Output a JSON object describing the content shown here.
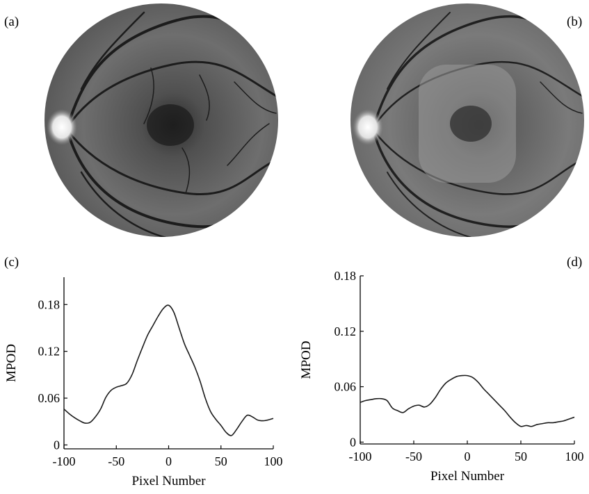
{
  "panels": {
    "a": "(a)",
    "b": "(b)",
    "c": "(c)",
    "d": "(d)"
  },
  "colors": {
    "line": "#1a1a1a",
    "axis": "#000000"
  },
  "chart_data": [
    {
      "type": "line",
      "panel": "(c)",
      "xlabel": "Pixel Number",
      "ylabel": "MPOD",
      "xlim": [
        -100,
        100
      ],
      "ylim": [
        -0.005,
        0.215
      ],
      "xticks": [
        -100,
        -50,
        0,
        50,
        100
      ],
      "xtick_labels": [
        "-100",
        "-50",
        "0",
        "50",
        "100"
      ],
      "yticks": [
        0,
        0.06,
        0.12,
        0.18
      ],
      "ytick_labels": [
        "0",
        "0.06",
        "0.12",
        "0.18"
      ],
      "grid": false,
      "series": [
        {
          "x": [
            -100,
            -95,
            -90,
            -85,
            -80,
            -75,
            -70,
            -65,
            -60,
            -55,
            -50,
            -45,
            -40,
            -35,
            -30,
            -25,
            -20,
            -15,
            -10,
            -5,
            0,
            5,
            10,
            15,
            20,
            25,
            30,
            35,
            40,
            45,
            50,
            55,
            60,
            65,
            70,
            75,
            80,
            85,
            90,
            95,
            100
          ],
          "values": [
            0.046,
            0.04,
            0.035,
            0.031,
            0.028,
            0.029,
            0.036,
            0.046,
            0.061,
            0.07,
            0.074,
            0.076,
            0.079,
            0.09,
            0.108,
            0.125,
            0.141,
            0.153,
            0.165,
            0.175,
            0.179,
            0.17,
            0.15,
            0.13,
            0.115,
            0.1,
            0.082,
            0.06,
            0.043,
            0.033,
            0.025,
            0.016,
            0.012,
            0.02,
            0.03,
            0.038,
            0.036,
            0.032,
            0.031,
            0.032,
            0.034
          ]
        }
      ]
    },
    {
      "type": "line",
      "panel": "(d)",
      "xlabel": "Pixel Number",
      "ylabel": "MPOD",
      "xlim": [
        -100,
        100
      ],
      "ylim": [
        -0.002,
        0.18
      ],
      "xticks": [
        -100,
        -50,
        0,
        50,
        100
      ],
      "xtick_labels": [
        "-100",
        "-50",
        "0",
        "50",
        "100"
      ],
      "yticks": [
        0,
        0.06,
        0.12,
        0.18
      ],
      "ytick_labels": [
        "0",
        "0.06",
        "0.12",
        "0.18"
      ],
      "grid": false,
      "series": [
        {
          "x": [
            -100,
            -95,
            -90,
            -85,
            -80,
            -75,
            -70,
            -65,
            -60,
            -55,
            -50,
            -45,
            -40,
            -35,
            -30,
            -25,
            -20,
            -15,
            -10,
            -5,
            0,
            5,
            10,
            15,
            20,
            25,
            30,
            35,
            40,
            45,
            50,
            55,
            60,
            65,
            70,
            75,
            80,
            85,
            90,
            95,
            100
          ],
          "values": [
            0.043,
            0.045,
            0.046,
            0.047,
            0.047,
            0.045,
            0.037,
            0.034,
            0.032,
            0.036,
            0.039,
            0.04,
            0.038,
            0.041,
            0.048,
            0.057,
            0.064,
            0.068,
            0.071,
            0.072,
            0.072,
            0.07,
            0.065,
            0.058,
            0.052,
            0.046,
            0.04,
            0.034,
            0.027,
            0.021,
            0.017,
            0.018,
            0.017,
            0.019,
            0.02,
            0.021,
            0.021,
            0.022,
            0.023,
            0.025,
            0.027
          ]
        }
      ]
    }
  ]
}
